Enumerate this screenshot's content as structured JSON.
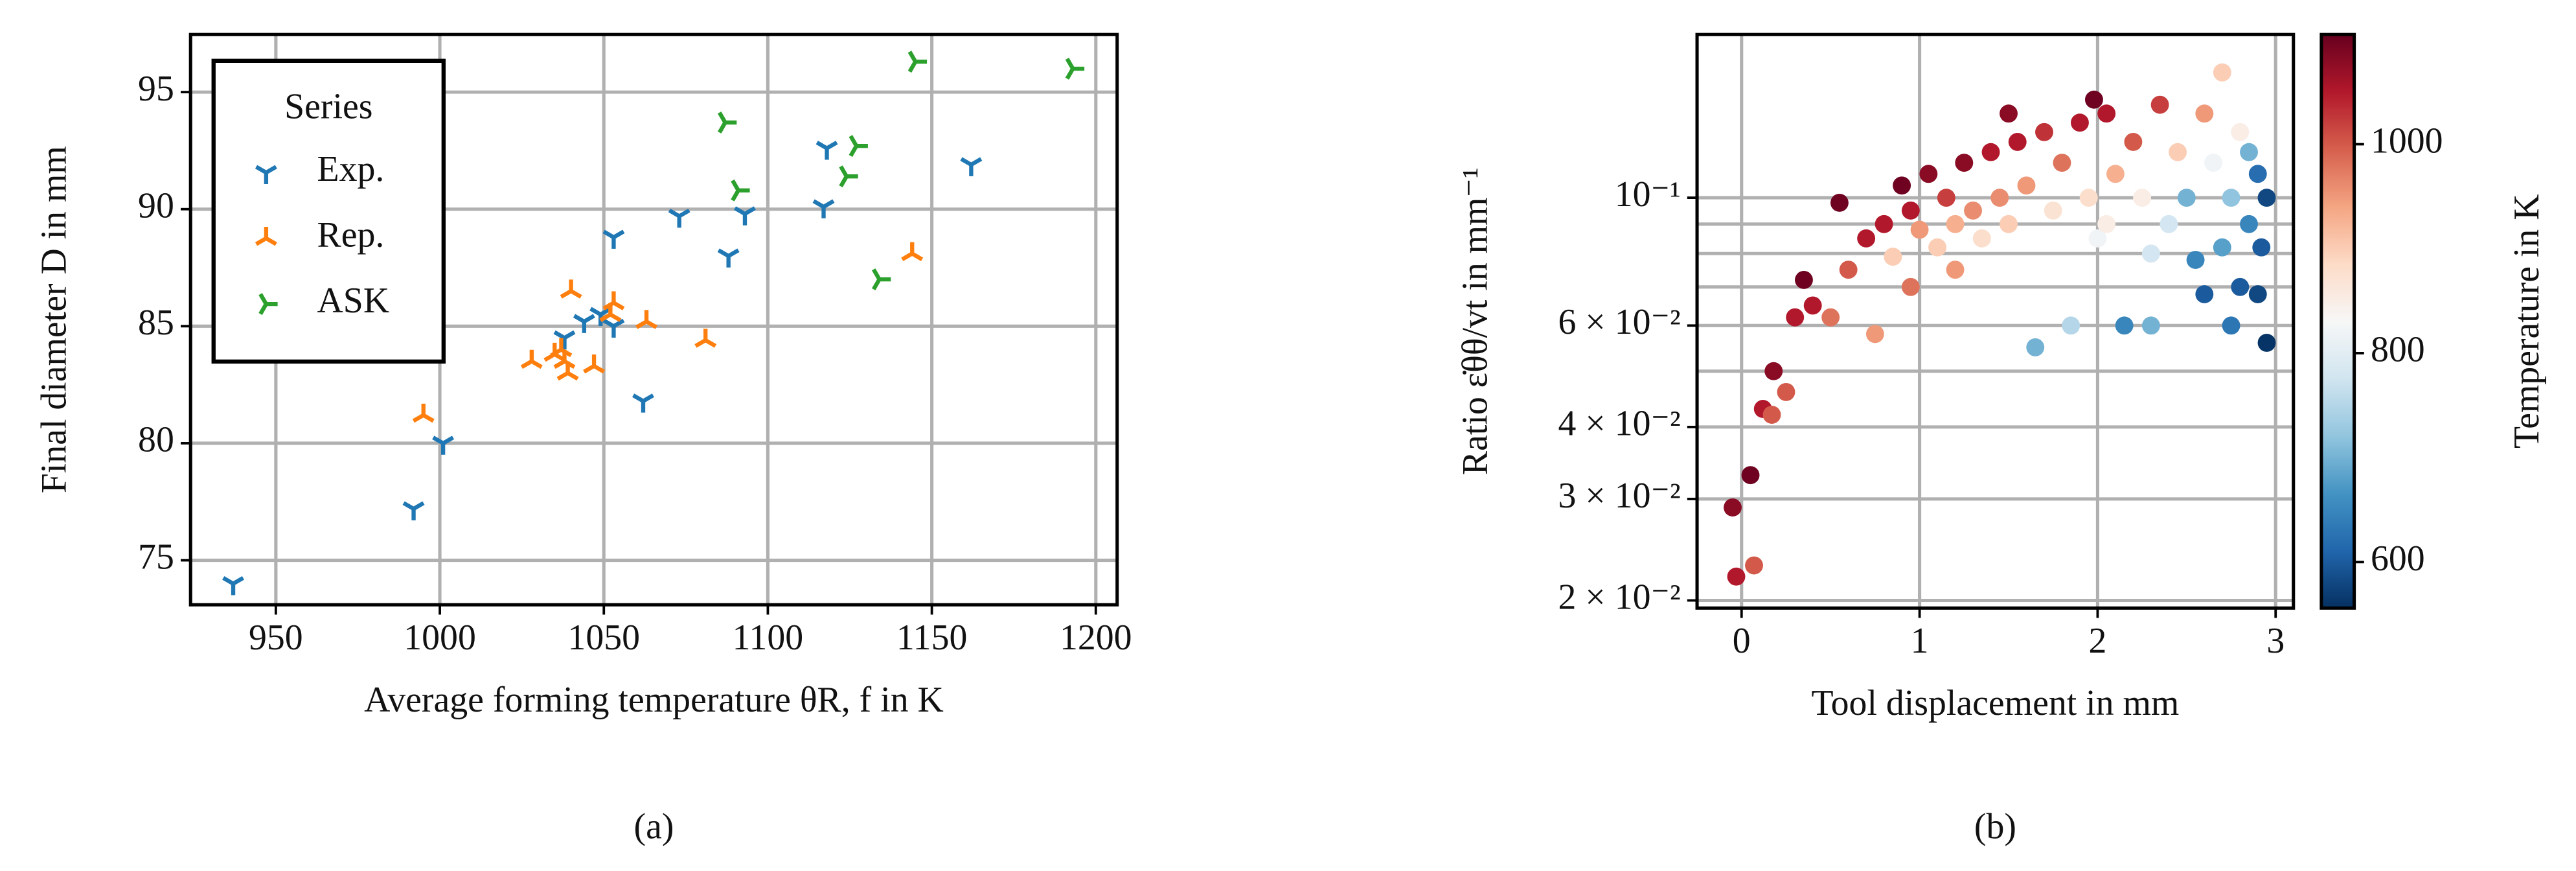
{
  "chart_data": [
    {
      "type": "scatter",
      "panel_label": "(a)",
      "x_label": "Average forming temperature θR, f in K",
      "y_label": "Final diameter D in mm",
      "xlim": [
        924,
        1206.5
      ],
      "xticks": [
        950,
        1000,
        1050,
        1100,
        1150,
        1200
      ],
      "ylim": [
        73.1,
        97.46
      ],
      "yticks": [
        75,
        80,
        85,
        90,
        95
      ],
      "grid": true,
      "legend_title": "Series",
      "legend_loc": "upper left",
      "series": [
        {
          "name": "Exp.",
          "color": "#1f77b4",
          "marker": "tri_down",
          "x": [
            937,
            992,
            1001,
            1038,
            1044,
            1049,
            1053,
            1053,
            1062,
            1073,
            1088,
            1093,
            1117,
            1118,
            1162
          ],
          "values": [
            74,
            77.2,
            80,
            84.5,
            85.2,
            85.5,
            85,
            88.8,
            81.8,
            89.7,
            88,
            89.8,
            90.1,
            92.6,
            91.9
          ]
        },
        {
          "name": "Rep.",
          "color": "#ff7f0e",
          "marker": "tri_up",
          "x": [
            995,
            1028,
            1035,
            1037,
            1039,
            1040,
            1047,
            1052,
            1053,
            1063,
            1081,
            1144,
            1038
          ],
          "values": [
            81.2,
            83.5,
            83.8,
            84,
            83,
            86.5,
            83.3,
            85.5,
            86,
            85.2,
            84.4,
            88.1,
            83.5
          ]
        },
        {
          "name": "ASK",
          "color": "#2ca02c",
          "marker": "tri_left",
          "x": [
            1087,
            1091,
            1124,
            1127,
            1134,
            1145,
            1193
          ],
          "values": [
            93.7,
            90.8,
            91.4,
            92.7,
            87,
            96.3,
            96
          ]
        }
      ]
    },
    {
      "type": "colorscatter",
      "panel_label": "(b)",
      "x_label": "Tool displacement in mm",
      "y_label": "Ratio ε̇θθ/vt  in mm⁻¹",
      "colorbar_label": "Temperature in K",
      "xlim": [
        -0.25,
        3.1
      ],
      "xticks": [
        0,
        1,
        2,
        3
      ],
      "ylim": [
        0.0194,
        0.192
      ],
      "ylog": true,
      "yticks": [
        {
          "value": 0.02,
          "label": "2 × 10⁻²"
        },
        {
          "value": 0.03,
          "label": "3 × 10⁻²"
        },
        {
          "value": 0.04,
          "label": "4 × 10⁻²"
        },
        {
          "value": 0.06,
          "label": "6 × 10⁻²"
        },
        {
          "value": 0.1,
          "label": "10⁻¹"
        }
      ],
      "yminorticks": [
        0.05,
        0.07,
        0.08,
        0.09
      ],
      "grid": true,
      "clim": [
        556,
        1105
      ],
      "cticks": [
        600,
        800,
        1000
      ],
      "colormap": [
        "#053061",
        "#2166ac",
        "#4393c3",
        "#92c5de",
        "#d1e5f0",
        "#f7f7f7",
        "#fddbc7",
        "#f4a582",
        "#d6604d",
        "#b2182b",
        "#67001f"
      ],
      "x": [
        -0.05,
        -0.03,
        0.05,
        0.07,
        0.12,
        0.17,
        0.18,
        0.25,
        0.3,
        0.35,
        0.4,
        0.5,
        0.55,
        0.6,
        0.7,
        0.75,
        0.8,
        0.85,
        0.9,
        0.95,
        1.0,
        1.05,
        1.1,
        1.15,
        1.2,
        1.25,
        1.3,
        1.35,
        1.4,
        1.45,
        1.5,
        1.55,
        1.6,
        1.65,
        1.7,
        1.75,
        1.8,
        1.85,
        1.9,
        1.95,
        1.98,
        2.0,
        2.05,
        2.1,
        2.15,
        2.2,
        2.25,
        2.3,
        2.35,
        2.4,
        2.45,
        2.5,
        2.55,
        2.6,
        2.6,
        2.65,
        2.7,
        2.7,
        2.75,
        2.75,
        2.8,
        2.8,
        2.85,
        2.85,
        2.9,
        2.9,
        2.95,
        2.95,
        2.92,
        1.2,
        0.95,
        2.3,
        1.5,
        2.05
      ],
      "values": [
        0.029,
        0.022,
        0.033,
        0.023,
        0.043,
        0.042,
        0.05,
        0.046,
        0.062,
        0.072,
        0.065,
        0.062,
        0.098,
        0.075,
        0.085,
        0.058,
        0.09,
        0.079,
        0.105,
        0.095,
        0.088,
        0.11,
        0.082,
        0.1,
        0.09,
        0.115,
        0.095,
        0.085,
        0.12,
        0.1,
        0.09,
        0.125,
        0.105,
        0.055,
        0.13,
        0.095,
        0.115,
        0.06,
        0.135,
        0.1,
        0.148,
        0.085,
        0.14,
        0.11,
        0.06,
        0.125,
        0.1,
        0.06,
        0.145,
        0.09,
        0.12,
        0.1,
        0.078,
        0.14,
        0.068,
        0.115,
        0.165,
        0.082,
        0.1,
        0.06,
        0.13,
        0.07,
        0.09,
        0.12,
        0.068,
        0.11,
        0.1,
        0.056,
        0.082,
        0.075,
        0.07,
        0.08,
        0.14,
        0.09
      ],
      "color_values": [
        1080,
        1050,
        1100,
        1000,
        1050,
        1000,
        1080,
        1000,
        1050,
        1100,
        1050,
        980,
        1100,
        1000,
        1050,
        950,
        1050,
        900,
        1100,
        1050,
        950,
        1080,
        900,
        1020,
        930,
        1080,
        960,
        880,
        1050,
        960,
        900,
        1050,
        950,
        700,
        1030,
        870,
        980,
        750,
        1050,
        880,
        1100,
        820,
        1050,
        930,
        650,
        1000,
        850,
        700,
        1020,
        780,
        900,
        700,
        650,
        950,
        600,
        820,
        900,
        680,
        720,
        630,
        850,
        600,
        650,
        700,
        580,
        620,
        580,
        560,
        600,
        950,
        980,
        780,
        1080,
        850
      ]
    }
  ]
}
